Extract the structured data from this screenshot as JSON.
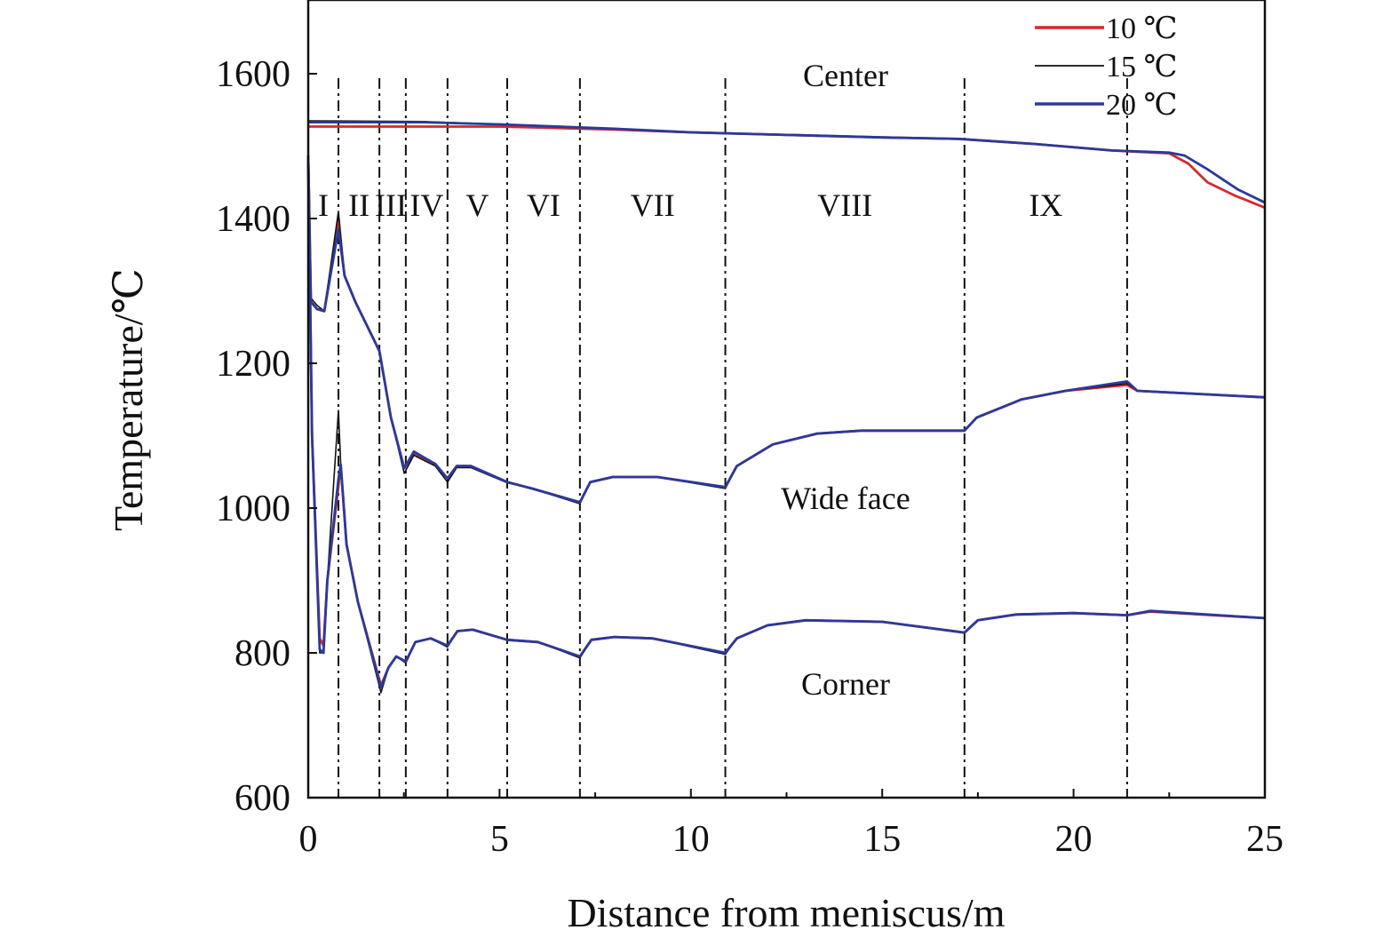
{
  "chart_data": {
    "type": "line",
    "title": "",
    "xlabel": "Distance from meniscus/m",
    "ylabel": "Temperature/℃",
    "xlim": [
      0,
      25
    ],
    "ylim": [
      600,
      1700
    ],
    "xticks": [
      0,
      5,
      10,
      15,
      20,
      25
    ],
    "yticks": [
      600,
      800,
      1000,
      1200,
      1400,
      1600
    ],
    "grid": false,
    "legend": {
      "position": "top-right",
      "entries": [
        {
          "label": "10 ℃",
          "color": "#d62a2a"
        },
        {
          "label": "15 ℃",
          "color": "#111111"
        },
        {
          "label": "20 ℃",
          "color": "#2b3a9a"
        }
      ]
    },
    "zone_boundaries": [
      0.79,
      1.86,
      2.55,
      3.64,
      5.2,
      7.1,
      10.9,
      17.15,
      21.4
    ],
    "zones": [
      "I",
      "II",
      "III",
      "IV",
      "V",
      "VI",
      "VII",
      "VIII",
      "IX"
    ],
    "annotations": [
      "Center",
      "Wide face",
      "Corner"
    ],
    "series": [
      {
        "name": "Center 10 ℃",
        "temp": "10 ℃",
        "color": "#d62a2a",
        "x": [
          0,
          3,
          5,
          8,
          10,
          15,
          17,
          19,
          21,
          22.5,
          23,
          23.5,
          24.2,
          25
        ],
        "y": [
          1527,
          1527,
          1527,
          1523,
          1519,
          1512,
          1510,
          1503,
          1494,
          1490,
          1476,
          1450,
          1432,
          1415
        ]
      },
      {
        "name": "Center 15 ℃",
        "temp": "15 ℃",
        "color": "#111111",
        "x": [
          0,
          3,
          5,
          8,
          10,
          15,
          17,
          19,
          21,
          22.5,
          22.9,
          23.5,
          24.3,
          25
        ],
        "y": [
          1535,
          1534,
          1530,
          1524,
          1519,
          1512,
          1510,
          1503,
          1494,
          1491,
          1487,
          1468,
          1440,
          1423
        ]
      },
      {
        "name": "Center 20 ℃",
        "temp": "20 ℃",
        "color": "#2b3a9a",
        "x": [
          0,
          3,
          5,
          8,
          10,
          15,
          17,
          19,
          21,
          22.5,
          22.9,
          23.5,
          24.3,
          25
        ],
        "y": [
          1533,
          1533,
          1530,
          1524,
          1519,
          1512,
          1510,
          1503,
          1494,
          1491,
          1487,
          1468,
          1440,
          1422
        ]
      },
      {
        "name": "Wide face 10 ℃",
        "temp": "10 ℃",
        "color": "#d62a2a",
        "x": [
          0,
          0.07,
          0.23,
          0.42,
          0.79,
          0.95,
          1.23,
          1.86,
          2.16,
          2.51,
          2.76,
          3.32,
          3.64,
          3.88,
          4.25,
          5.2,
          5.85,
          7.1,
          7.37,
          7.96,
          9.12,
          10.9,
          11.2,
          12.14,
          13.3,
          14.46,
          17.15,
          17.47,
          18.63,
          19.79,
          21.4,
          21.67,
          25
        ],
        "y": [
          1487,
          1285,
          1275,
          1272,
          1395,
          1321,
          1285,
          1217,
          1125,
          1055,
          1076,
          1061,
          1041,
          1058,
          1058,
          1036,
          1027,
          1008,
          1036,
          1043,
          1043,
          1029,
          1058,
          1088,
          1103,
          1107,
          1107,
          1125,
          1150,
          1162,
          1170,
          1162,
          1153
        ]
      },
      {
        "name": "Wide face 15 ℃",
        "temp": "15 ℃",
        "color": "#111111",
        "x": [
          0,
          0.07,
          0.23,
          0.42,
          0.79,
          0.95,
          1.23,
          1.86,
          2.16,
          2.51,
          2.76,
          3.32,
          3.64,
          3.88,
          4.25,
          5.2,
          5.85,
          7.1,
          7.37,
          7.96,
          9.12,
          10.9,
          11.2,
          12.14,
          13.3,
          14.46,
          17.15,
          17.47,
          18.63,
          19.79,
          21.4,
          21.67,
          25
        ],
        "y": [
          1487,
          1290,
          1280,
          1272,
          1410,
          1321,
          1285,
          1217,
          1125,
          1048,
          1073,
          1058,
          1036,
          1056,
          1056,
          1035,
          1027,
          1006,
          1036,
          1043,
          1043,
          1027,
          1058,
          1088,
          1103,
          1107,
          1107,
          1125,
          1150,
          1162,
          1172,
          1162,
          1153
        ]
      },
      {
        "name": "Wide face 20 ℃",
        "temp": "20 ℃",
        "color": "#2b3a9a",
        "x": [
          0,
          0.07,
          0.23,
          0.42,
          0.79,
          0.95,
          1.23,
          1.86,
          2.16,
          2.51,
          2.76,
          3.32,
          3.64,
          3.88,
          4.25,
          5.2,
          5.85,
          7.1,
          7.37,
          7.96,
          9.12,
          10.9,
          11.2,
          12.14,
          13.3,
          14.46,
          17.15,
          17.47,
          18.63,
          19.79,
          21.4,
          21.67,
          25
        ],
        "y": [
          1487,
          1285,
          1275,
          1272,
          1385,
          1321,
          1285,
          1217,
          1125,
          1055,
          1078,
          1061,
          1041,
          1058,
          1058,
          1036,
          1027,
          1008,
          1036,
          1043,
          1043,
          1029,
          1058,
          1088,
          1103,
          1107,
          1107,
          1125,
          1150,
          1162,
          1175,
          1162,
          1153
        ]
      },
      {
        "name": "Corner 10 ℃",
        "temp": "10 ℃",
        "color": "#d62a2a",
        "x": [
          0,
          0.1,
          0.3,
          0.4,
          0.5,
          0.79,
          0.85,
          1.0,
          1.3,
          1.9,
          2.1,
          2.3,
          2.55,
          2.8,
          3.2,
          3.64,
          3.9,
          4.3,
          5.2,
          6.0,
          7.1,
          7.4,
          8.0,
          9.0,
          10.9,
          11.2,
          12.0,
          13.0,
          15.0,
          17.15,
          17.5,
          18.5,
          20.0,
          21.4,
          22.0,
          25
        ],
        "y": [
          1480,
          1100,
          820,
          810,
          900,
          1030,
          1060,
          950,
          870,
          755,
          780,
          795,
          788,
          815,
          820,
          810,
          830,
          832,
          818,
          815,
          795,
          818,
          822,
          820,
          800,
          820,
          838,
          845,
          843,
          828,
          845,
          853,
          855,
          852,
          857,
          848
        ]
      },
      {
        "name": "Corner 15 ℃",
        "temp": "15 ℃",
        "color": "#111111",
        "x": [
          0,
          0.1,
          0.3,
          0.4,
          0.5,
          0.79,
          0.85,
          1.0,
          1.3,
          1.9,
          2.1,
          2.3,
          2.55,
          2.8,
          3.2,
          3.64,
          3.9,
          4.3,
          5.2,
          6.0,
          7.1,
          7.4,
          8.0,
          9.0,
          10.9,
          11.2,
          12.0,
          13.0,
          15.0,
          17.15,
          17.5,
          18.5,
          20.0,
          21.4,
          22.0,
          25
        ],
        "y": [
          1480,
          1100,
          800,
          800,
          900,
          1135,
          1060,
          950,
          870,
          745,
          780,
          795,
          786,
          815,
          820,
          808,
          830,
          832,
          818,
          815,
          793,
          818,
          822,
          820,
          798,
          820,
          838,
          845,
          843,
          828,
          845,
          853,
          855,
          852,
          857,
          848
        ]
      },
      {
        "name": "Corner 20 ℃",
        "temp": "20 ℃",
        "color": "#2b3a9a",
        "x": [
          0,
          0.1,
          0.3,
          0.4,
          0.5,
          0.79,
          0.85,
          1.0,
          1.3,
          1.9,
          2.1,
          2.3,
          2.55,
          2.8,
          3.2,
          3.64,
          3.9,
          4.3,
          5.2,
          6.0,
          7.1,
          7.4,
          8.0,
          9.0,
          10.9,
          11.2,
          12.0,
          13.0,
          15.0,
          17.15,
          17.5,
          18.5,
          20.0,
          21.4,
          22.0,
          25
        ],
        "y": [
          1480,
          1100,
          805,
          800,
          900,
          1040,
          1060,
          950,
          870,
          752,
          780,
          795,
          788,
          815,
          820,
          810,
          830,
          832,
          818,
          815,
          795,
          818,
          822,
          820,
          800,
          820,
          838,
          845,
          843,
          828,
          845,
          853,
          855,
          852,
          858,
          848
        ]
      }
    ]
  }
}
